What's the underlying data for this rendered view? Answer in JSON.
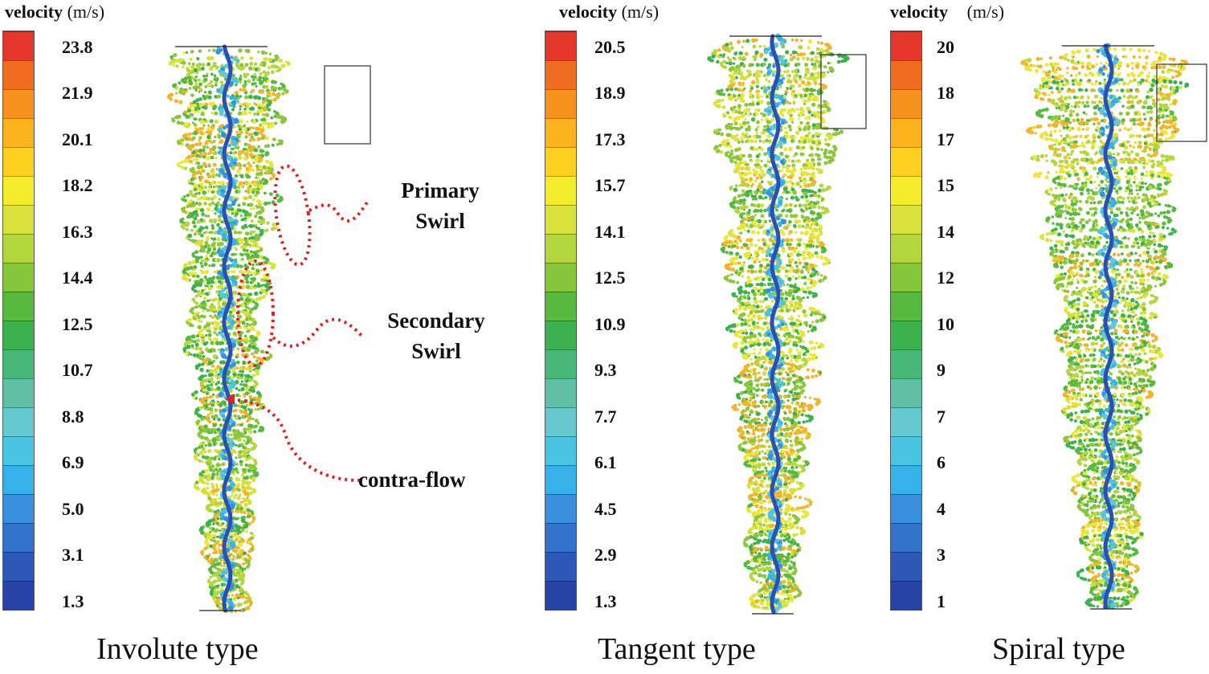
{
  "palette": [
    "#2743a6",
    "#2e58b8",
    "#3473cc",
    "#3a8fdc",
    "#37b1ea",
    "#49c4e2",
    "#66c9cf",
    "#5fc0a6",
    "#48b878",
    "#3cb24f",
    "#57ba3f",
    "#86c63a",
    "#b3d63c",
    "#d8e23a",
    "#f5ec2c",
    "#fdd01f",
    "#fbb21c",
    "#f6921d",
    "#ef6c20",
    "#e4362a"
  ],
  "panels": [
    {
      "id": "involute",
      "legend_label": "velocity",
      "legend_unit": "(m/s)",
      "ticks": [
        "23.8",
        "21.9",
        "20.1",
        "18.2",
        "16.3",
        "14.4",
        "12.5",
        "10.7",
        "8.8",
        "6.9",
        "5.0",
        "3.1",
        "1.3"
      ],
      "caption": "Involute type"
    },
    {
      "id": "tangent",
      "legend_label": "velocity",
      "legend_unit": "(m/s)",
      "ticks": [
        "20.5",
        "18.9",
        "17.3",
        "15.7",
        "14.1",
        "12.5",
        "10.9",
        "9.3",
        "7.7",
        "6.1",
        "4.5",
        "2.9",
        "1.3"
      ],
      "caption": "Tangent type"
    },
    {
      "id": "spiral",
      "legend_label": "velocity",
      "legend_unit": "(m/s)",
      "ticks": [
        "20",
        "18",
        "17",
        "15",
        "14",
        "12",
        "10",
        "9",
        "7",
        "6",
        "4",
        "3",
        "1"
      ],
      "caption": "Spiral type"
    }
  ],
  "annotations": {
    "primary_swirl": [
      "Primary",
      "Swirl"
    ],
    "secondary_swirl": [
      "Secondary",
      "Swirl"
    ],
    "contra_flow": "contra-flow"
  }
}
